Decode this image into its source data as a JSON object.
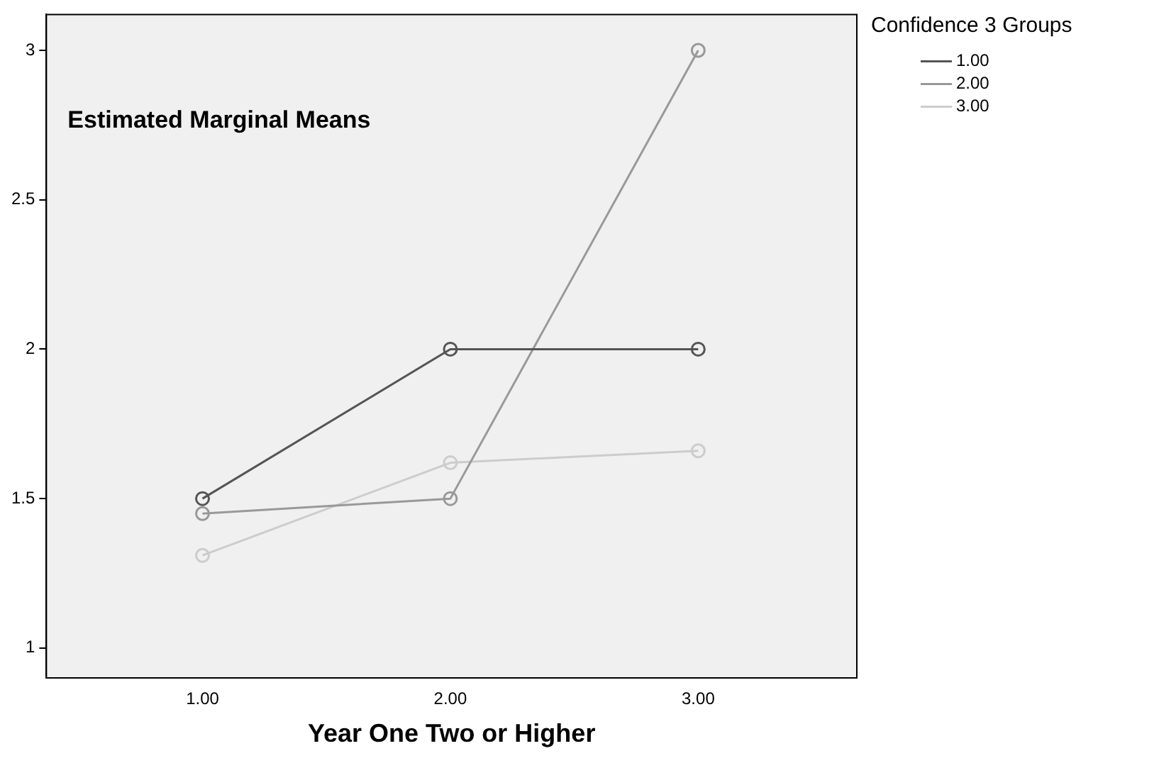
{
  "chart_data": {
    "type": "line",
    "title": "Estimated Marginal Means",
    "xlabel": "Year One Two or Higher",
    "legend_title": "Confidence 3 Groups",
    "legend": "top right",
    "marker": "circle",
    "grid": false,
    "x": [
      1,
      2,
      3
    ],
    "xlim": [
      0.37,
      3.64
    ],
    "xticks": [
      {
        "value": 1,
        "label": "1.00"
      },
      {
        "value": 2,
        "label": "2.00"
      },
      {
        "value": 3,
        "label": "3.00"
      }
    ],
    "ylim": [
      0.9,
      3.12
    ],
    "yticks": [
      1,
      1.5,
      2,
      2.5,
      3
    ],
    "series": [
      {
        "name": "1.00",
        "color": "#555555",
        "values": [
          1.5,
          2,
          2
        ]
      },
      {
        "name": "2.00",
        "color": "#999999",
        "values": [
          1.45,
          1.5,
          3
        ]
      },
      {
        "name": "3.00",
        "color": "#cccccc",
        "values": [
          1.31,
          1.62,
          1.66
        ]
      }
    ]
  }
}
